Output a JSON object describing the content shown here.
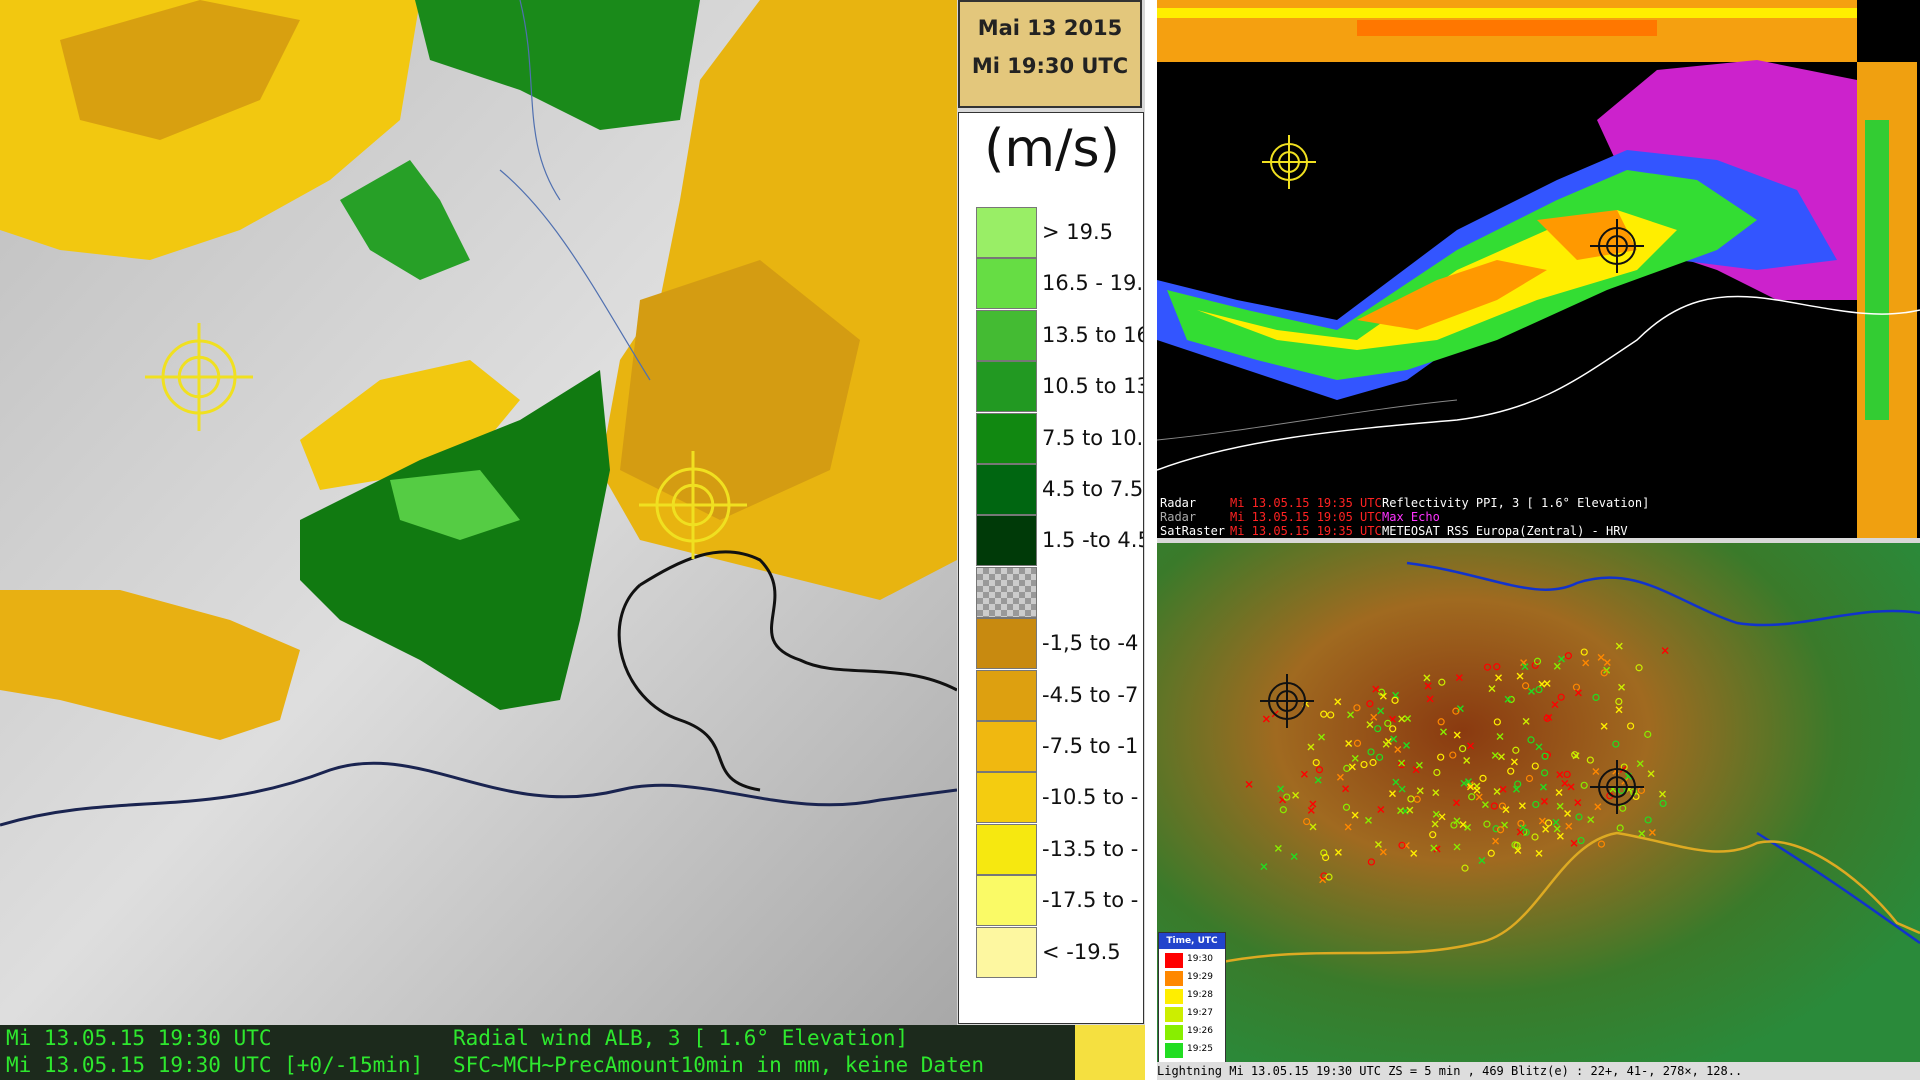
{
  "header": {
    "date": "Mai 13 2015",
    "time": "Mi 19:30 UTC"
  },
  "legend": {
    "unit": "(m/s)",
    "positive": [
      {
        "label": "> 19.5",
        "color": "#99ee66"
      },
      {
        "label": "16.5 - 19.",
        "color": "#66dd44"
      },
      {
        "label": "13.5 to 16",
        "color": "#44bb33"
      },
      {
        "label": "10.5 to 13",
        "color": "#229922"
      },
      {
        "label": "7.5 to 10.",
        "color": "#118811"
      },
      {
        "label": "4.5 to 7.5",
        "color": "#006611"
      },
      {
        "label": "1.5 -to 4.5",
        "color": "#003a08"
      }
    ],
    "negative": [
      {
        "label": "-1,5 to -4",
        "color": "#c88a10"
      },
      {
        "label": "-4.5 to -7",
        "color": "#dda010"
      },
      {
        "label": "-7.5 to -1",
        "color": "#f0b810"
      },
      {
        "label": "-10.5 to -",
        "color": "#f4cc10"
      },
      {
        "label": "-13.5 to -",
        "color": "#f6e810"
      },
      {
        "label": "-17.5 to -",
        "color": "#fafa66"
      },
      {
        "label": "< -19.5",
        "color": "#fdf7a0"
      }
    ]
  },
  "status": [
    {
      "time": "Mi 13.05.15 19:30 UTC",
      "product": "Radial wind ALB, 3 [ 1.6° Elevation]"
    },
    {
      "time": "Mi 13.05.15 19:30 UTC [+0/-15min]",
      "product": "SFC~MCH~PrecAmount10min in mm, keine Daten"
    }
  ],
  "radar_info": [
    {
      "source": "Radar",
      "time": "Mi 13.05.15 19:35 UTC",
      "product": "Reflectivity  PPI, 3  [ 1.6° Elevation]"
    },
    {
      "source": "Radar",
      "time": "Mi 13.05.15 19:05 UTC",
      "product": "Max Echo"
    },
    {
      "source": "SatRaster",
      "time": "Mi 13.05.15 19:35 UTC",
      "product": "METEOSAT RSS Europa(Zentral) - HRV"
    }
  ],
  "time_legend": {
    "title": "Time, UTC",
    "items": [
      {
        "label": "19:30",
        "color": "#ff0000"
      },
      {
        "label": "19:29",
        "color": "#ff8800"
      },
      {
        "label": "19:28",
        "color": "#ffee00"
      },
      {
        "label": "19:27",
        "color": "#ccee00"
      },
      {
        "label": "19:26",
        "color": "#88ee00"
      },
      {
        "label": "19:25",
        "color": "#22dd22"
      }
    ]
  },
  "lightning_footer": "Lightning  Mi 13.05.15 19:30 UTC  ZS = 5 min , 469 Blitz(e) : 22+, 41-, 278×, 128.."
}
